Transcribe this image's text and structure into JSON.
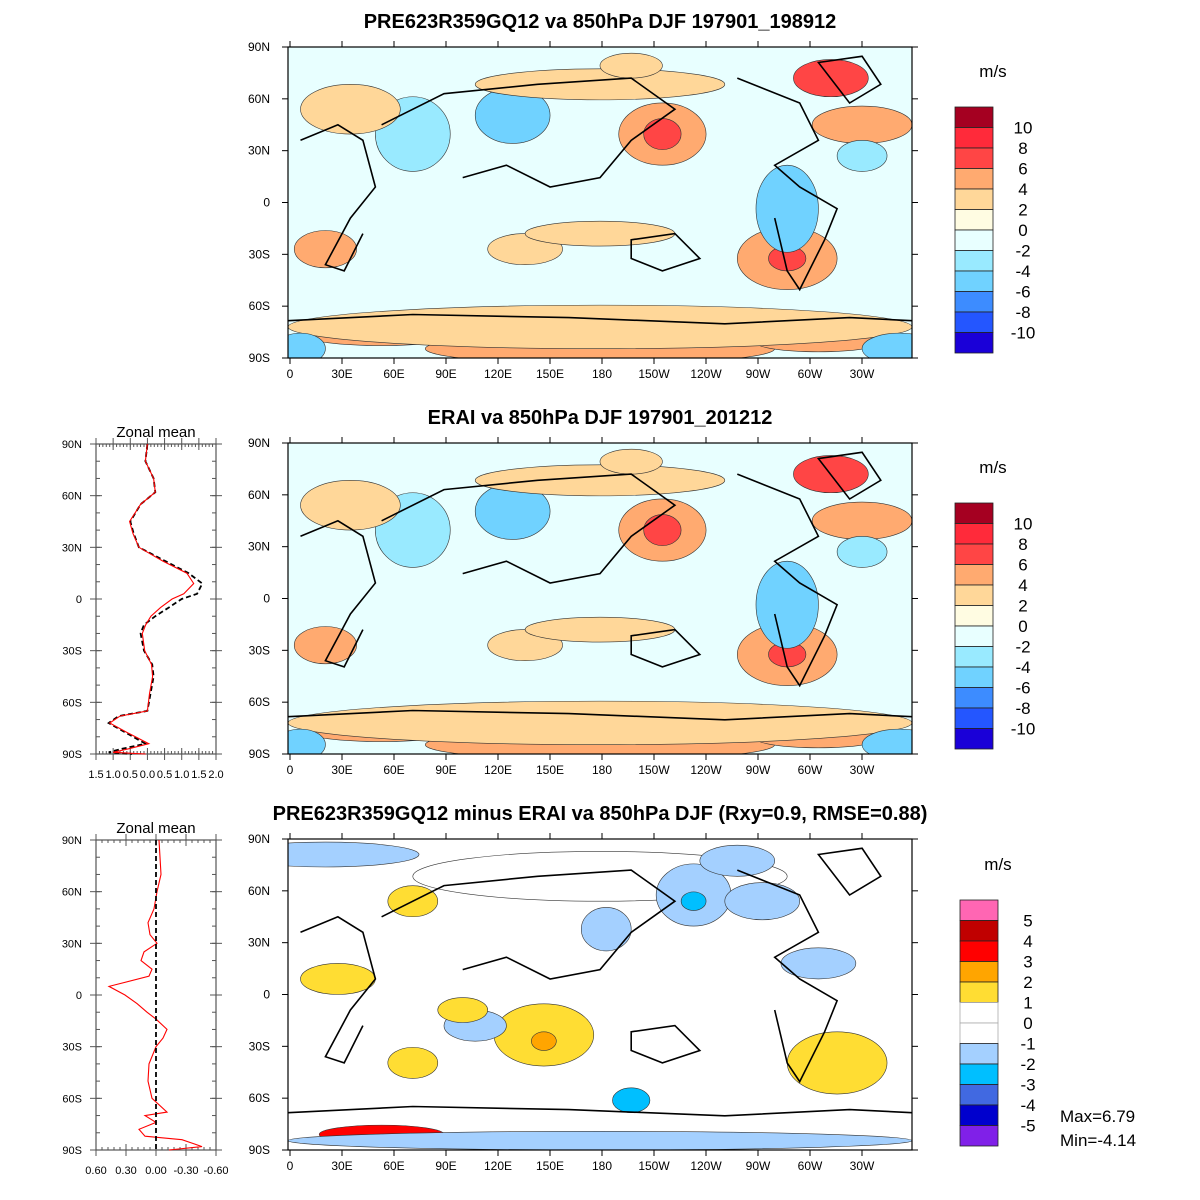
{
  "panels": [
    {
      "title": "PRE623R359GQ12 va 850hPa DJF 197901_198912",
      "colorbar": {
        "unit": "m/s",
        "labels": [
          "10",
          "8",
          "6",
          "4",
          "2",
          "0",
          "-2",
          "-4",
          "-6",
          "-8",
          "-10"
        ],
        "colors": [
          "#a50021",
          "#ff2a3a",
          "#ff4545",
          "#ffaa70",
          "#ffd799",
          "#fffce2",
          "#e8ffff",
          "#99eaff",
          "#70d2ff",
          "#3d8cff",
          "#2456ff",
          "#1a00d8"
        ]
      }
    },
    {
      "title": "ERAI va 850hPa DJF 197901_201212",
      "colorbar": {
        "unit": "m/s",
        "labels": [
          "10",
          "8",
          "6",
          "4",
          "2",
          "0",
          "-2",
          "-4",
          "-6",
          "-8",
          "-10"
        ],
        "colors": [
          "#a50021",
          "#ff2a3a",
          "#ff4545",
          "#ffaa70",
          "#ffd799",
          "#fffce2",
          "#e8ffff",
          "#99eaff",
          "#70d2ff",
          "#3d8cff",
          "#2456ff",
          "#1a00d8"
        ]
      }
    },
    {
      "title": "PRE623R359GQ12 minus ERAI va 850hPa DJF (Rxy=0.9, RMSE=0.88)",
      "colorbar": {
        "unit": "m/s",
        "labels": [
          "5",
          "4",
          "3",
          "2",
          "1",
          "0",
          "-1",
          "-2",
          "-3",
          "-4",
          "-5"
        ],
        "colors": [
          "#ff66b3",
          "#c00000",
          "#ff0000",
          "#ffa500",
          "#ffdd33",
          "#ffffff",
          "#ffffff",
          "#a4d0ff",
          "#00bfff",
          "#4169e1",
          "#0000cd",
          "#8020e8"
        ]
      },
      "stats": {
        "max": "Max=6.79",
        "min": "Min=-4.14"
      }
    }
  ],
  "lat_labels": [
    "90N",
    "60N",
    "30N",
    "0",
    "30S",
    "60S",
    "90S"
  ],
  "lon_labels": [
    "0",
    "30E",
    "60E",
    "90E",
    "120E",
    "150E",
    "180",
    "150W",
    "120W",
    "90W",
    "60W",
    "30W"
  ],
  "chart_data": [
    {
      "type": "line",
      "title": "Zonal mean",
      "xlim": [
        -1.5,
        2.0
      ],
      "ylim": [
        -90,
        90
      ],
      "xtick_labels": [
        "1.5",
        "1.0",
        "0.5",
        "0.0",
        "0.5",
        "1.0",
        "1.5",
        "2.0"
      ],
      "ytick_labels": [
        "90N",
        "60N",
        "30N",
        "0",
        "30S",
        "60S",
        "90S"
      ],
      "lat": [
        90,
        80,
        70,
        62,
        55,
        45,
        38,
        30,
        22,
        15,
        9,
        3,
        0,
        -5,
        -10,
        -15,
        -20,
        -30,
        -38,
        -45,
        -55,
        -65,
        -68,
        -72,
        -78,
        -84,
        -87,
        -89,
        -90
      ],
      "series": [
        {
          "color": "#ff0000",
          "style": "solid",
          "values": [
            0,
            -0.06,
            0.18,
            0.23,
            -0.2,
            -0.52,
            -0.42,
            -0.25,
            0.45,
            1.15,
            1.35,
            1.06,
            0.72,
            0.38,
            0.1,
            -0.05,
            -0.15,
            -0.08,
            0.12,
            0.15,
            0.06,
            0,
            -0.8,
            -1.1,
            -0.55,
            0.04,
            -0.55,
            -1.0,
            -0.05
          ]
        },
        {
          "color": "#000000",
          "style": "dashed",
          "values": [
            0,
            -0.06,
            0.18,
            0.23,
            -0.2,
            -0.5,
            -0.4,
            -0.25,
            0.52,
            1.2,
            1.6,
            1.45,
            1.0,
            0.62,
            0.23,
            -0.1,
            -0.2,
            -0.1,
            0.14,
            0.18,
            0.09,
            0,
            -0.84,
            -1.13,
            -0.6,
            -0.06,
            -0.74,
            -1.13,
            -0.45
          ]
        }
      ]
    },
    {
      "type": "line",
      "title": "Zonal mean",
      "xlim": [
        0.6,
        -0.6
      ],
      "ylim": [
        -90,
        90
      ],
      "xtick_labels": [
        "0.60",
        "0.30",
        "0.00",
        "-0.30",
        "-0.60"
      ],
      "ytick_labels": [
        "90N",
        "60N",
        "30N",
        "0",
        "30S",
        "60S",
        "90S"
      ],
      "lat": [
        90,
        80,
        70,
        60,
        50,
        42,
        35,
        30,
        25,
        20,
        15,
        11,
        5,
        0,
        -5,
        -10,
        -14,
        -20,
        -25,
        -30,
        -40,
        -50,
        -60,
        -68,
        -70,
        -74,
        -78,
        -82,
        -84,
        -86,
        -88,
        -90
      ],
      "series": [
        {
          "color": "#ff0000",
          "style": "solid",
          "values": [
            -0.03,
            -0.04,
            -0.05,
            -0.01,
            0.02,
            0.08,
            0.06,
            -0.01,
            0.12,
            0.15,
            0.04,
            0.07,
            0.47,
            0.31,
            0.19,
            0.09,
            0,
            -0.11,
            -0.07,
            0,
            0.07,
            0.08,
            0.04,
            -0.11,
            0.11,
            0,
            0.17,
            0.11,
            -0.26,
            -0.36,
            -0.46,
            -0.13
          ]
        },
        {
          "color": "#000000",
          "style": "dashed",
          "values": [
            0,
            0,
            0,
            0,
            0,
            0,
            0,
            0,
            0,
            0,
            0,
            0,
            0,
            0,
            0,
            0,
            0,
            0,
            0,
            0,
            0,
            0,
            0,
            0,
            0,
            0,
            0,
            0,
            0,
            0,
            0,
            0
          ]
        }
      ]
    }
  ]
}
